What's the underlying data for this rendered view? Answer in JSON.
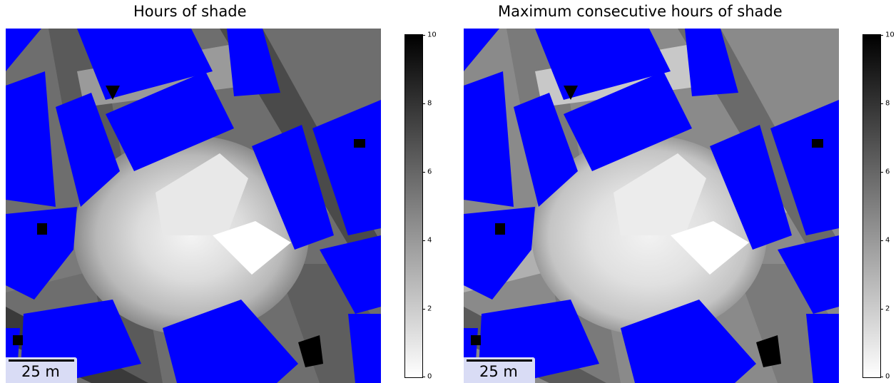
{
  "panels": [
    {
      "title": "Hours of shade",
      "scalebar_label": "25 m",
      "colorbar": {
        "min": 0,
        "max": 10,
        "ticks": [
          "0",
          "2",
          "4",
          "6",
          "8",
          "10"
        ]
      }
    },
    {
      "title": "Maximum consecutive hours of shade",
      "scalebar_label": "25 m",
      "colorbar": {
        "min": 0,
        "max": 10,
        "ticks": [
          "0",
          "2",
          "4",
          "6",
          "8",
          "10"
        ]
      }
    }
  ],
  "colors": {
    "buildings": "#0000ff",
    "low_shade": "#ffffff",
    "high_shade": "#000000",
    "scalebar_background": "#d9dcf5"
  }
}
